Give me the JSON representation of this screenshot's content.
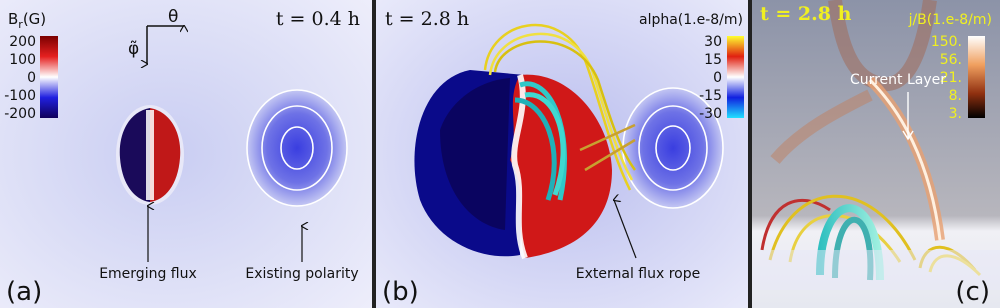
{
  "panels": [
    {
      "label": "(a)",
      "time": "t = 0.4 h",
      "colorbar": {
        "title": {
          "base": "B",
          "sub": "r",
          "unit": "(G)"
        },
        "ticks": [
          200,
          100,
          0,
          -100,
          -200
        ]
      },
      "axes": {
        "theta": "θ",
        "phi": "φ̃"
      },
      "annotations": [
        "Emerging flux",
        "Existing polarity"
      ]
    },
    {
      "label": "(b)",
      "time": "t = 2.8 h",
      "colorbar": {
        "title": "alpha(1.e-8/m)",
        "ticks": [
          30,
          15,
          0,
          -15,
          -30
        ]
      },
      "annotations": [
        "External flux rope"
      ]
    },
    {
      "label": "(c)",
      "time": "t = 2.8 h",
      "colorbar": {
        "title": "j/B(1.e-8/m)",
        "ticks": [
          "150.",
          "56.",
          "21.",
          "8.",
          "3."
        ]
      },
      "annotations": [
        "Current Layer"
      ]
    }
  ]
}
